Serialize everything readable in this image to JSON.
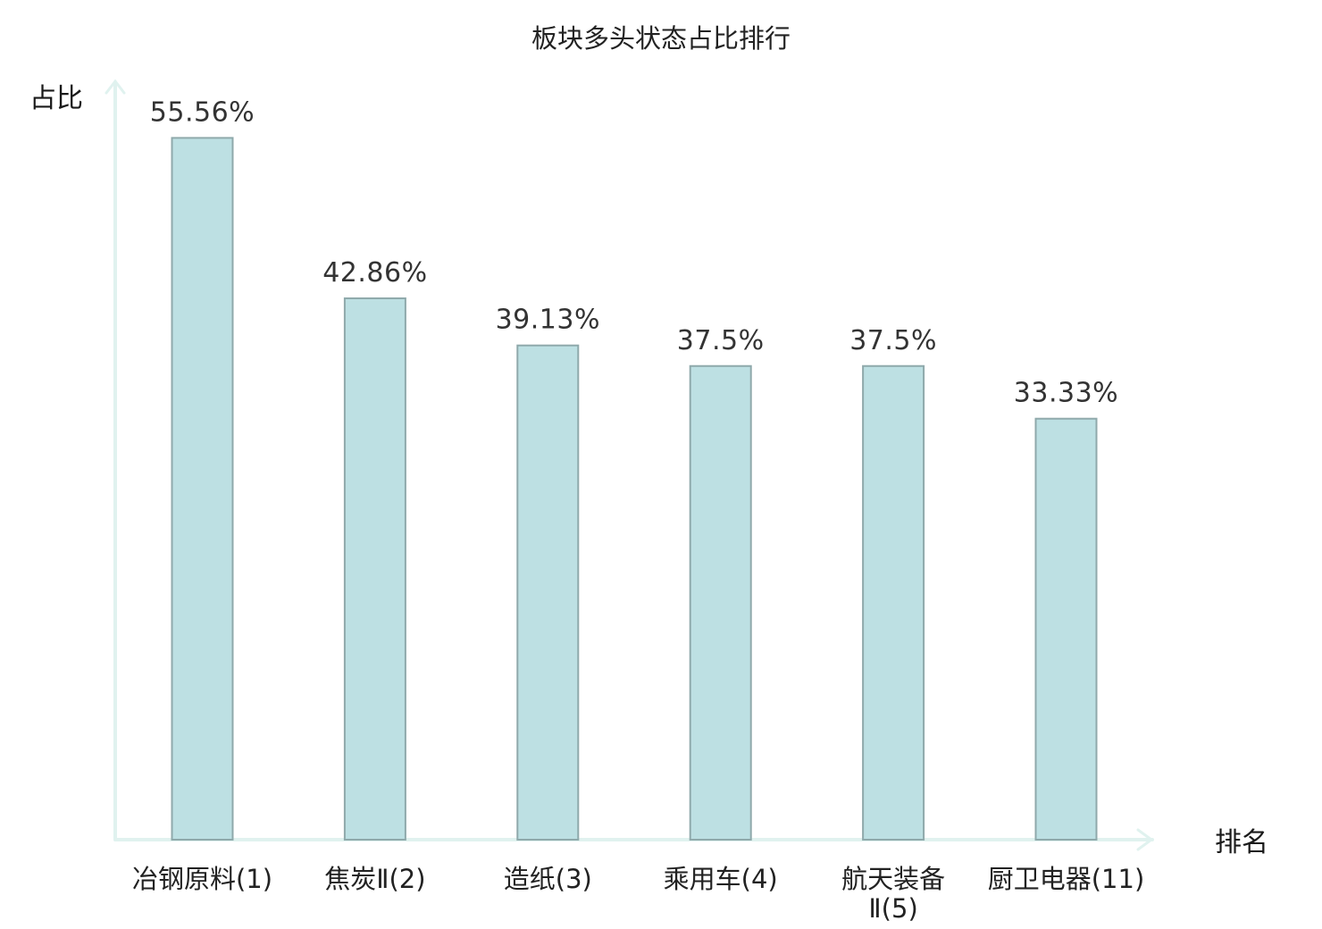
{
  "chart_data": {
    "type": "bar",
    "title": "板块多头状态占比排行",
    "ylabel": "占比",
    "xlabel": "排名",
    "ylim": [
      0,
      60
    ],
    "grid": false,
    "legend": "none",
    "categories": [
      [
        "冶钢原料(1)"
      ],
      [
        "焦炭Ⅱ(2)"
      ],
      [
        "造纸(3)"
      ],
      [
        "乘用车(4)"
      ],
      [
        "航天装备",
        "Ⅱ(5)"
      ],
      [
        "厨卫电器(11)"
      ]
    ],
    "values": [
      55.56,
      42.86,
      39.13,
      37.5,
      37.5,
      33.33
    ],
    "value_labels": [
      "55.56%",
      "42.86%",
      "39.13%",
      "37.5%",
      "37.5%",
      "33.33%"
    ],
    "highlight_index": 5
  },
  "colors": {
    "bar_fill": "#bde0e3",
    "bar_stroke": "#8fa9ab",
    "axis": "#e0f2ef",
    "highlight_text": "#e0201c",
    "text": "#222222"
  }
}
